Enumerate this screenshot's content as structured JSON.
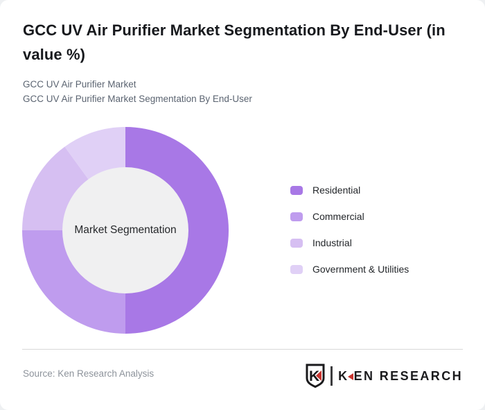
{
  "page": {
    "title": "GCC UV Air Purifier Market Segmentation By End-User (in value %)",
    "subtitle_line1": "GCC UV Air Purifier Market",
    "subtitle_line2": "GCC UV Air Purifier Market Segmentation By End-User"
  },
  "chart_data": {
    "type": "pie",
    "subtype": "donut",
    "title": "GCC UV Air Purifier Market Segmentation By End-User (in value %)",
    "center_label": "Market Segmentation",
    "start_angle_deg": 0,
    "direction": "clockwise",
    "legend_position": "right",
    "units": "value %",
    "segments": [
      {
        "label": "Residential",
        "value_pct": 50,
        "color": "#a878e6"
      },
      {
        "label": "Commercial",
        "value_pct": 25,
        "color": "#bf9cee"
      },
      {
        "label": "Industrial",
        "value_pct": 15,
        "color": "#d6bff2"
      },
      {
        "label": "Government & Utilities",
        "value_pct": 10,
        "color": "#e0d0f6"
      }
    ],
    "inner_disc_color": "#f0f0f1"
  },
  "footer": {
    "source": "Source: Ken Research Analysis",
    "logo_text": "KEN RESEARCH",
    "logo_shield_letter": "K",
    "brand_red": "#c8332e",
    "brand_dark": "#1b1b1d"
  }
}
